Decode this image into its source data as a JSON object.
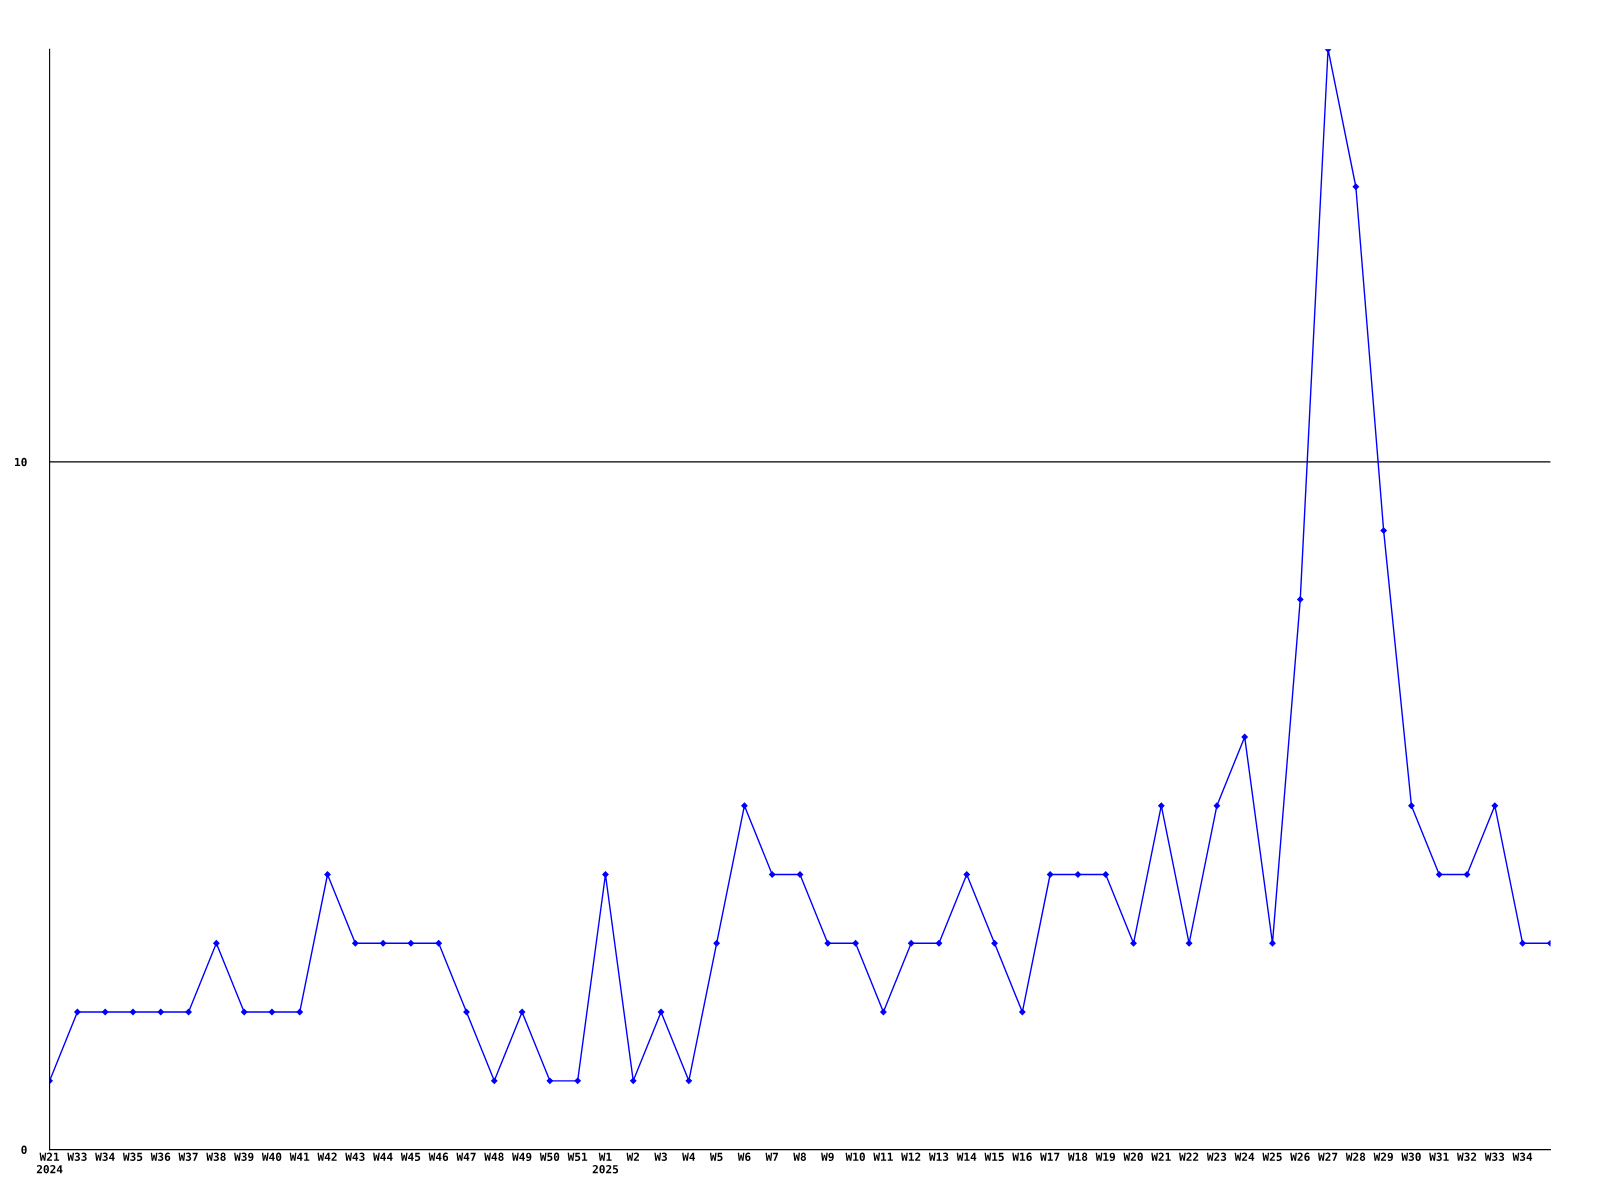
{
  "chart_data": {
    "type": "line",
    "categories": [
      "W21\n2024",
      "W33",
      "W34",
      "W35",
      "W36",
      "W37",
      "W38",
      "W39",
      "W40",
      "W41",
      "W42",
      "W43",
      "W44",
      "W45",
      "W46",
      "W47",
      "W48",
      "W49",
      "W50",
      "W51",
      "W1\n2025",
      "W2",
      "W3",
      "W4",
      "W5",
      "W6",
      "W7",
      "W8",
      "W9",
      "W10",
      "W11",
      "W12",
      "W13",
      "W14",
      "W15",
      "W16",
      "W17",
      "W18",
      "W19",
      "W20",
      "W21",
      "W22",
      "W23",
      "W24",
      "W25",
      "W26",
      "W27",
      "W28",
      "W29",
      "W30",
      "W31",
      "W32",
      "W33",
      "W34",
      null
    ],
    "series": [
      {
        "color": "#0000ff",
        "values": [
          1,
          2,
          2,
          2,
          2,
          2,
          3,
          2,
          2,
          2,
          4,
          3,
          3,
          3,
          3,
          2,
          1,
          2,
          1,
          1,
          4,
          1,
          2,
          1,
          3,
          5,
          4,
          4,
          3,
          3,
          2,
          3,
          3,
          4,
          3,
          2,
          4,
          4,
          4,
          3,
          5,
          3,
          5,
          6,
          3,
          8,
          16,
          14,
          9,
          5,
          4,
          4,
          5,
          3,
          3
        ]
      }
    ],
    "ylim": [
      0,
      16
    ],
    "yticks": [
      0,
      10
    ],
    "grid": "y",
    "marker": "diamond",
    "line_style": "solid"
  }
}
